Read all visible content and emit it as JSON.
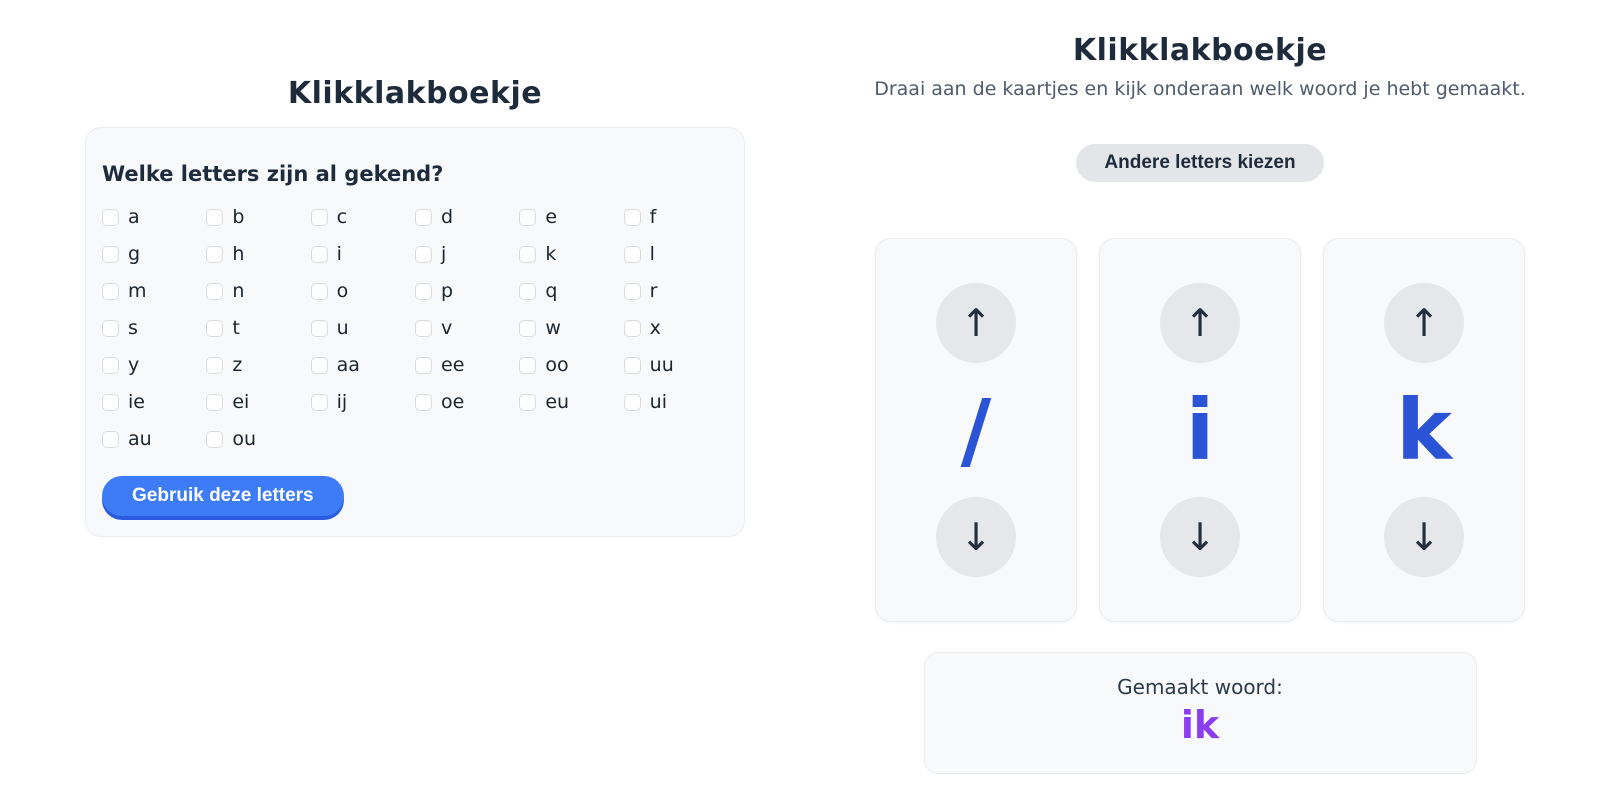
{
  "left_panel": {
    "title": "Klikklakboekje",
    "question": "Welke letters zijn al gekend?",
    "letters": [
      "a",
      "b",
      "c",
      "d",
      "e",
      "f",
      "g",
      "h",
      "i",
      "j",
      "k",
      "l",
      "m",
      "n",
      "o",
      "p",
      "q",
      "r",
      "s",
      "t",
      "u",
      "v",
      "w",
      "x",
      "y",
      "z",
      "aa",
      "ee",
      "oo",
      "uu",
      "ie",
      "ei",
      "ij",
      "oe",
      "eu",
      "ui",
      "au",
      "ou"
    ],
    "submit_label": "Gebruik deze letters"
  },
  "right_panel": {
    "title": "Klikklakboekje",
    "subtitle": "Draai aan de kaartjes en kijk onderaan welk woord je hebt gemaakt.",
    "change_letters_label": "Andere letters kiezen",
    "icons": {
      "up": "↑",
      "down": "↓"
    },
    "cards": [
      {
        "letter": "/"
      },
      {
        "letter": "i"
      },
      {
        "letter": "k"
      }
    ],
    "word_label": "Gemaakt woord:",
    "word": "ik"
  },
  "colors": {
    "title_navy": "#1e2b3c",
    "subtitle_slate": "#4e5b6e",
    "card_letter_blue": "#2a53d5",
    "primary_button_blue": "#3e7cf7",
    "primary_button_edge_blue": "#2b5ce0",
    "word_purple": "#8b3df0",
    "pill_gray": "#e4e5e9",
    "card_background": "#f8f9fb"
  }
}
